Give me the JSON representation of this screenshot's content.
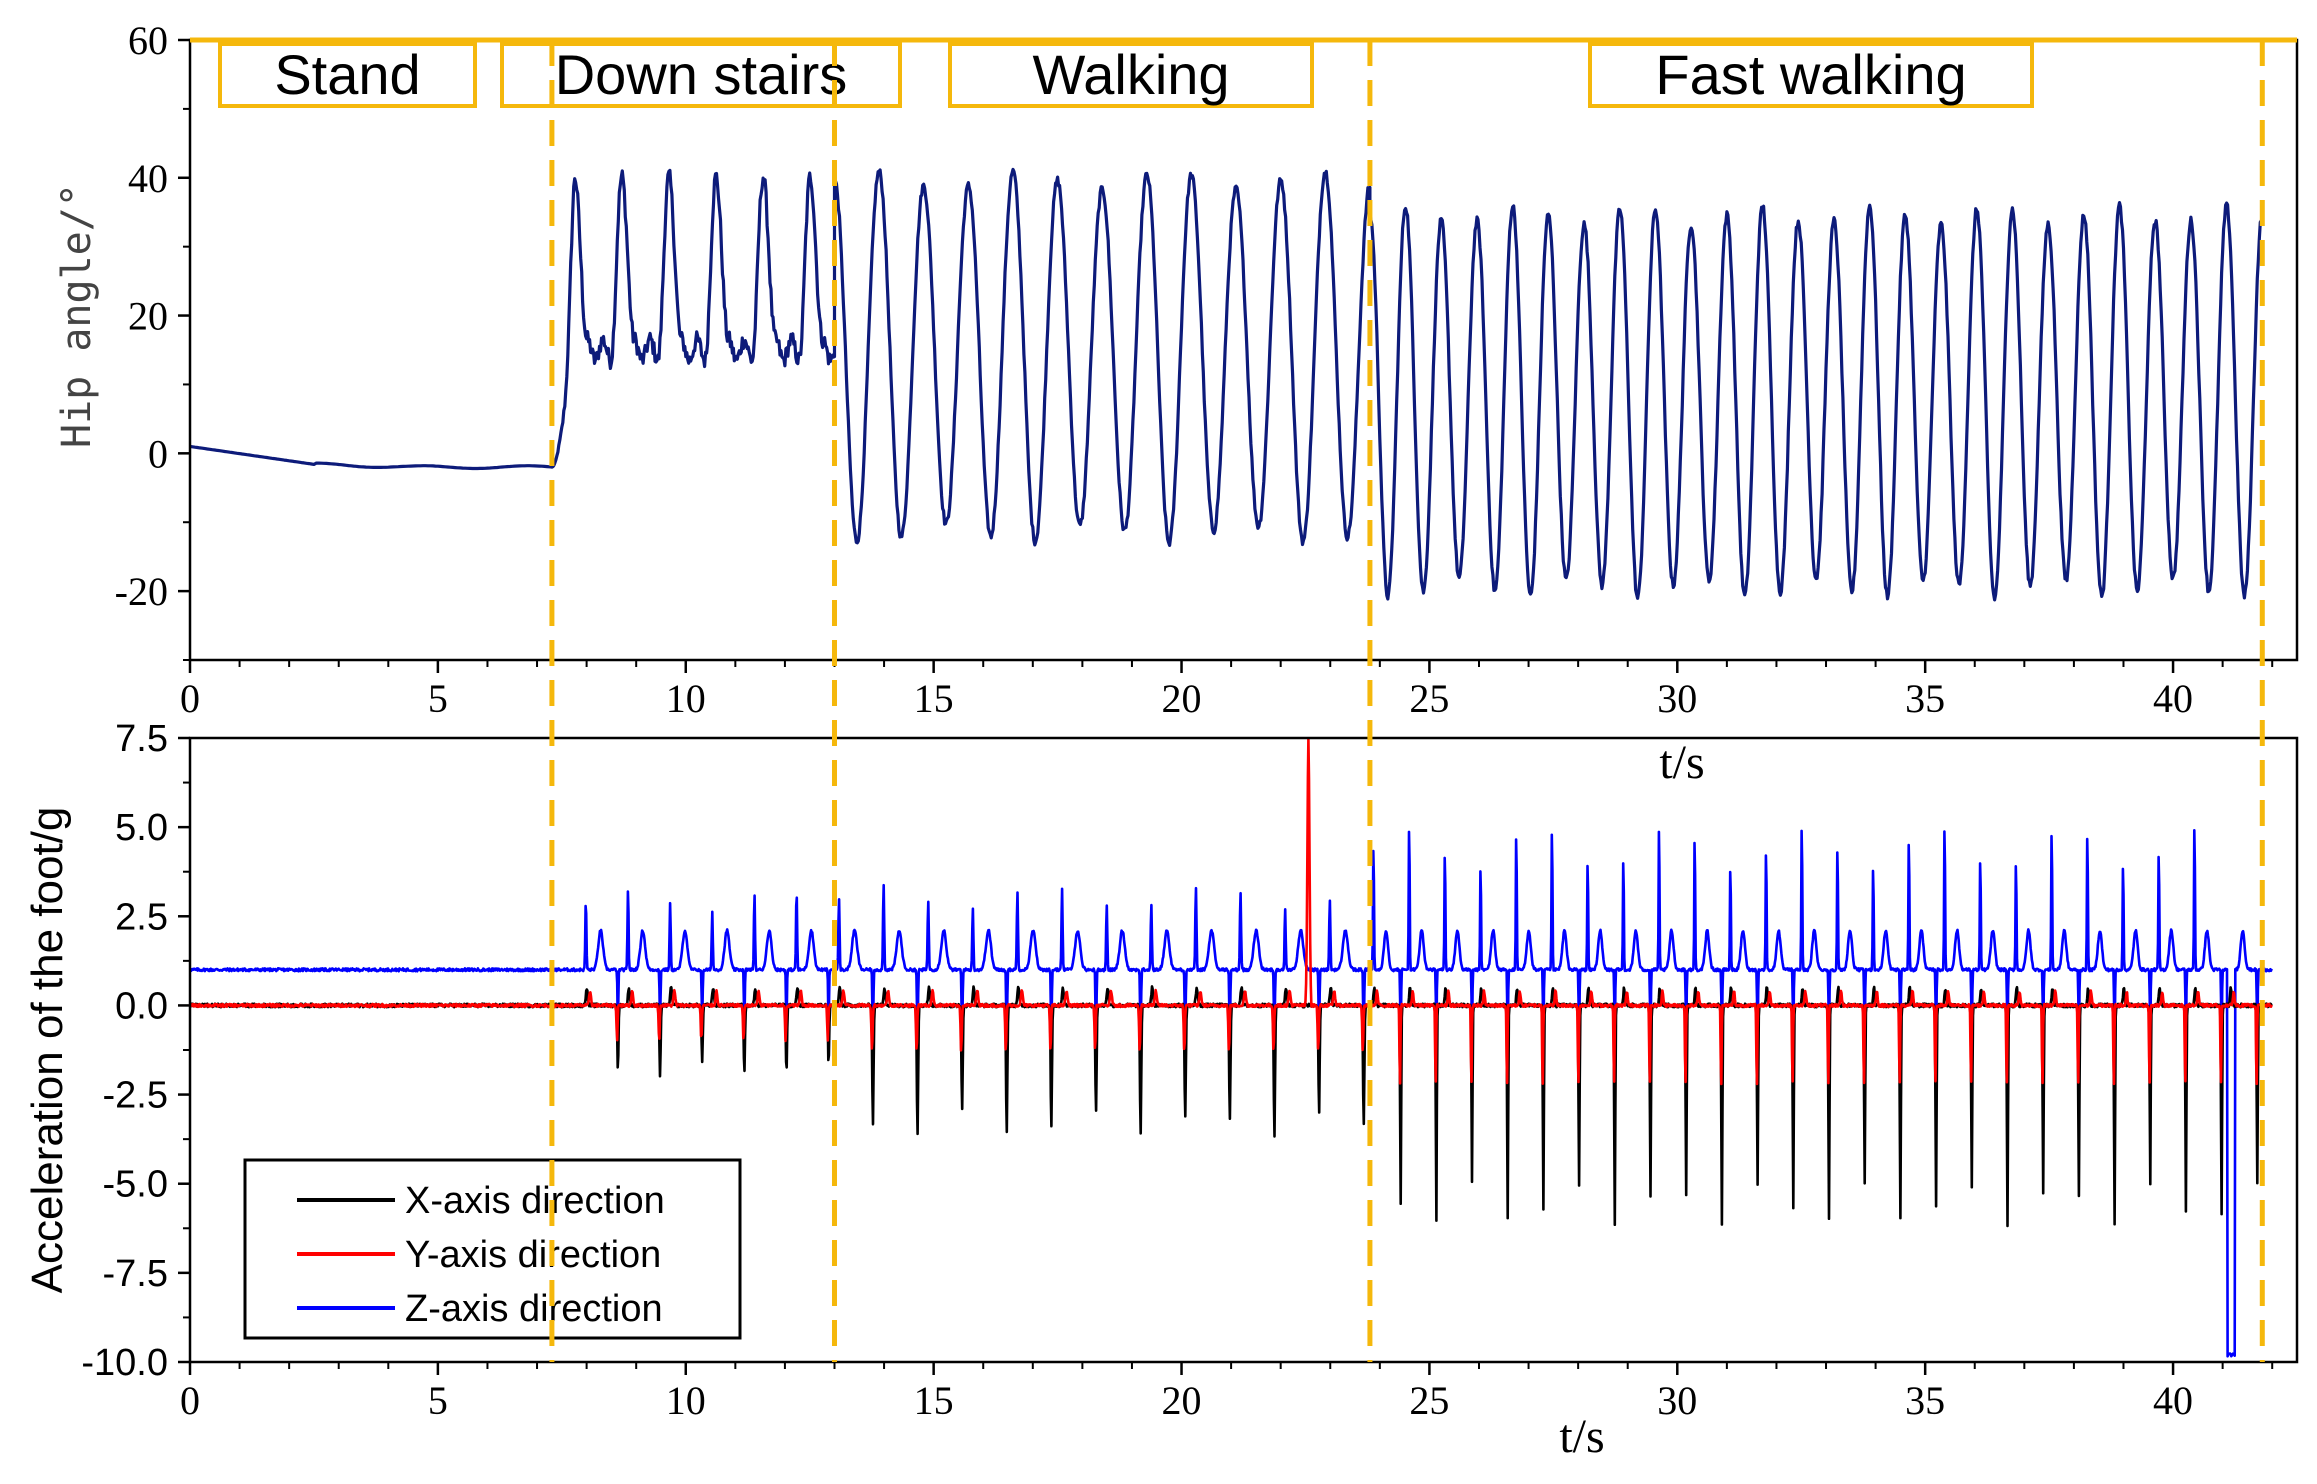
{
  "chart_data": [
    {
      "type": "line",
      "id": "hip",
      "ylabel": "Hip angle/°",
      "xlabel": "t/s",
      "xlim": [
        0,
        42.5
      ],
      "ylim": [
        -30,
        60
      ],
      "xticks": [
        0,
        5,
        10,
        15,
        20,
        25,
        30,
        35,
        40
      ],
      "yticks": [
        60,
        40,
        20,
        0,
        -20
      ],
      "series": [
        {
          "name": "Hip angle",
          "color": "#0d1b7a"
        }
      ],
      "phases": [
        {
          "label": "Stand",
          "start": 0,
          "end": 7.3,
          "amp": 0
        },
        {
          "label": "Down stairs",
          "start": 7.3,
          "end": 13.0,
          "peak": 40,
          "trough": 15,
          "cycles": 6
        },
        {
          "label": "Walking",
          "start": 13.0,
          "end": 23.8,
          "peak": 41,
          "trough": -13,
          "cycles": 12
        },
        {
          "label": "Fast walking",
          "start": 23.8,
          "end": 41.8,
          "peak": 36,
          "trough": -21,
          "cycles": 25
        }
      ]
    },
    {
      "type": "line",
      "id": "foot",
      "ylabel": "Acceleration of the foot/g",
      "xlabel": "t/s",
      "xlim": [
        0,
        42.5
      ],
      "ylim": [
        -10,
        7.5
      ],
      "xticks": [
        0,
        5,
        10,
        15,
        20,
        25,
        30,
        35,
        40
      ],
      "yticks": [
        7.5,
        5.0,
        2.5,
        0.0,
        -2.5,
        -5.0,
        -7.5,
        -10.0
      ],
      "ytick_labels": [
        "7.5",
        "5.0",
        "2.5",
        "0.0",
        "-2.5",
        "-5.0",
        "-7.5",
        "-10.0"
      ],
      "series": [
        {
          "name": "X-axis direction",
          "color": "#000000",
          "rest": 0,
          "spikes_down": [
            -2,
            -3.7,
            -6.2
          ]
        },
        {
          "name": "Y-axis direction",
          "color": "#ff0000",
          "rest": 0,
          "spikes_down": [
            -1,
            -1.3,
            -2.3
          ],
          "max_spike": 7.5
        },
        {
          "name": "Z-axis direction",
          "color": "#0000ff",
          "rest": 1,
          "spikes_up": [
            3.3,
            3.4,
            5.3
          ],
          "min_spike": -9.8
        }
      ],
      "phase_boundaries": [
        7.3,
        13.0,
        23.8,
        41.8
      ],
      "legend": "bottom-left"
    }
  ],
  "colors": {
    "phase_line": "#f5b80c",
    "axis": "#000000"
  }
}
